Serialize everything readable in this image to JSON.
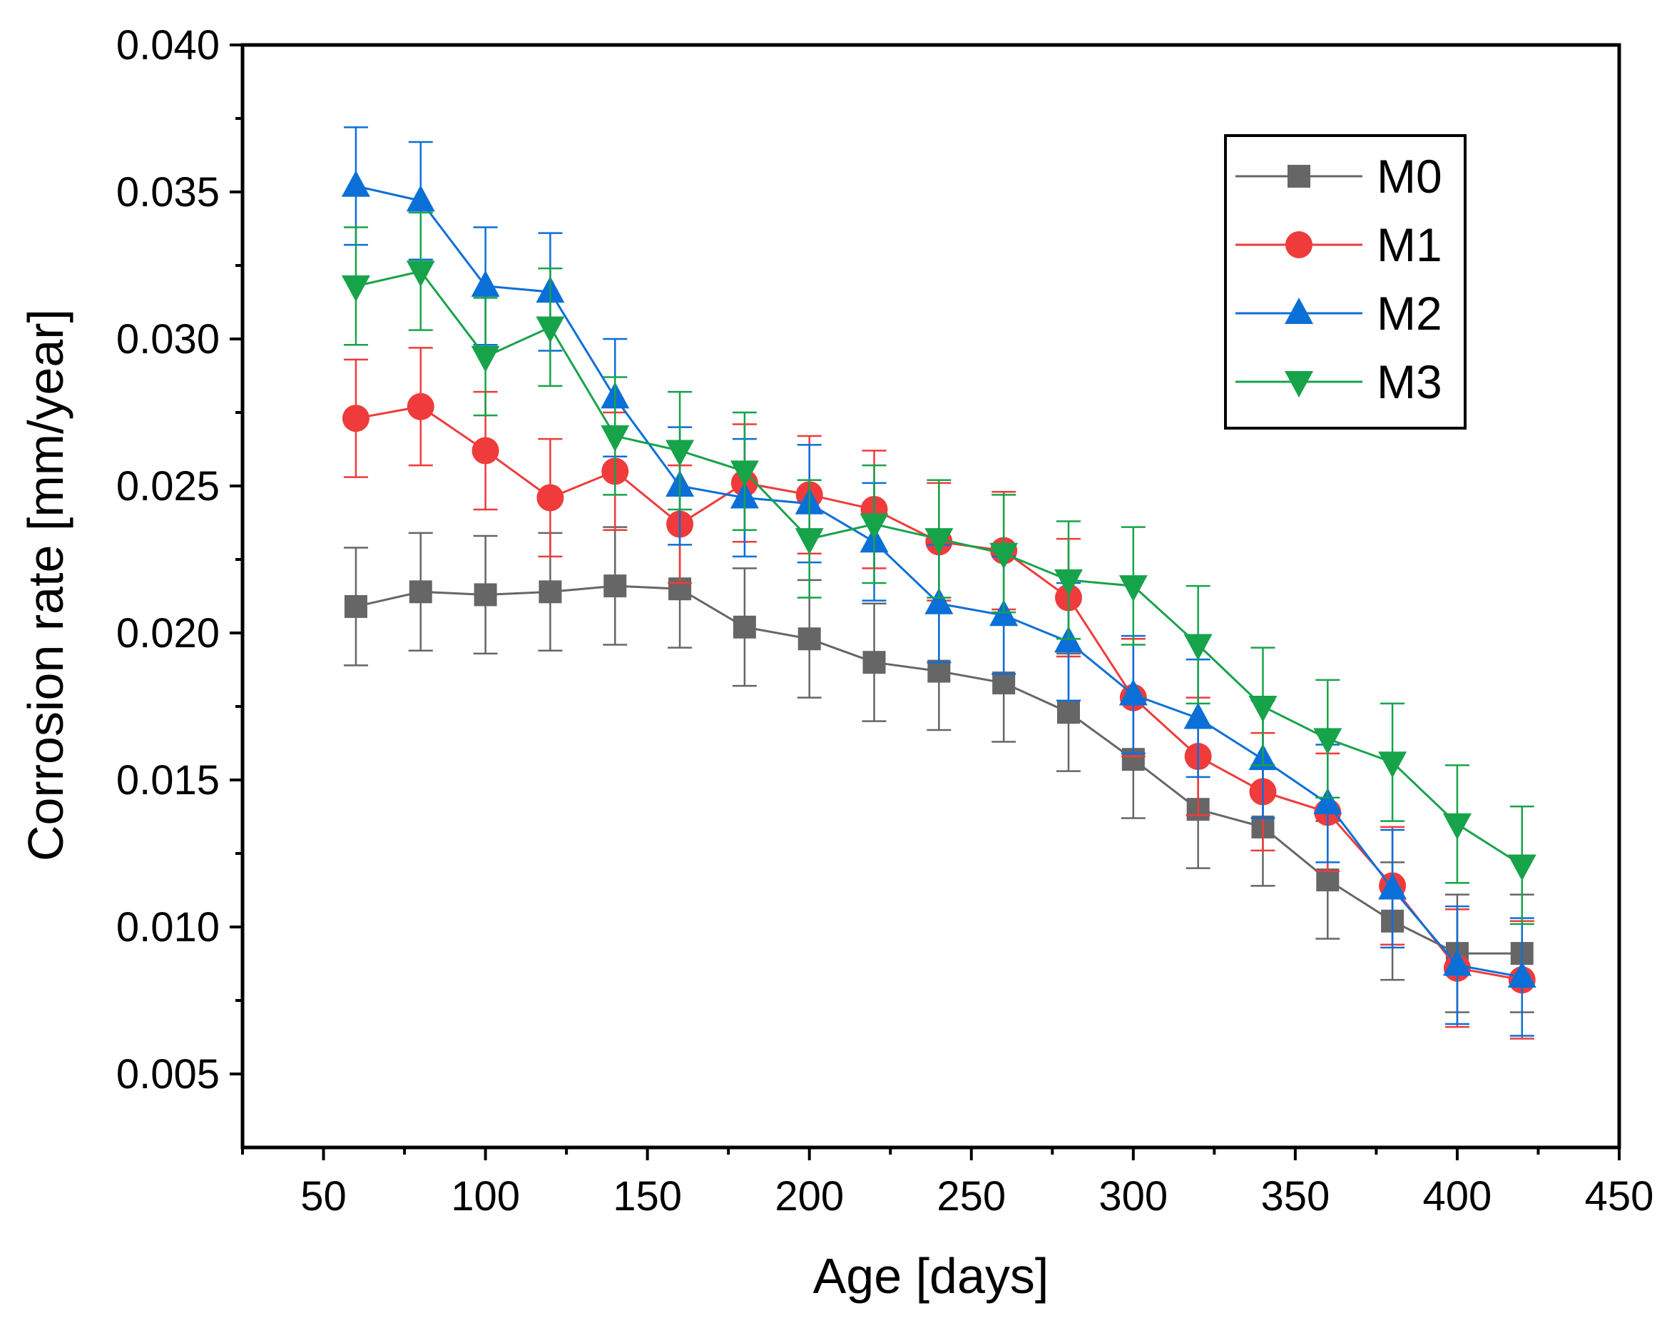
{
  "chart_data": {
    "type": "line",
    "title": "",
    "xlabel": "Age [days]",
    "ylabel": "Corrosion rate [mm/year]",
    "xlim": [
      25,
      450
    ],
    "ylim": [
      0.0025,
      0.04
    ],
    "x_ticks": [
      50,
      100,
      150,
      200,
      250,
      300,
      350,
      400,
      450
    ],
    "x_tick_labels": [
      "50",
      "100",
      "150",
      "200",
      "250",
      "300",
      "350",
      "400",
      "450"
    ],
    "y_ticks": [
      0.005,
      0.01,
      0.015,
      0.02,
      0.025,
      0.03,
      0.035,
      0.04
    ],
    "y_tick_labels": [
      "0.005",
      "0.010",
      "0.015",
      "0.020",
      "0.025",
      "0.030",
      "0.035",
      "0.040"
    ],
    "legend_position": "top-right",
    "error_bar": 0.002,
    "x": [
      60,
      80,
      100,
      120,
      140,
      160,
      180,
      200,
      220,
      240,
      260,
      280,
      300,
      320,
      340,
      360,
      380,
      400,
      420
    ],
    "series": [
      {
        "name": "M0",
        "color": "#666666",
        "marker": "square",
        "values": [
          0.0209,
          0.0214,
          0.0213,
          0.0214,
          0.0216,
          0.0215,
          0.0202,
          0.0198,
          0.019,
          0.0187,
          0.0183,
          0.0173,
          0.0157,
          0.014,
          0.0134,
          0.0116,
          0.0102,
          0.0091,
          0.0091
        ]
      },
      {
        "name": "M1",
        "color": "#ef3b3b",
        "marker": "circle",
        "values": [
          0.0273,
          0.0277,
          0.0262,
          0.0246,
          0.0255,
          0.0237,
          0.0251,
          0.0247,
          0.0242,
          0.0231,
          0.0228,
          0.0212,
          0.0178,
          0.0158,
          0.0146,
          0.0139,
          0.0114,
          0.0086,
          0.0082
        ]
      },
      {
        "name": "M2",
        "color": "#0b6fd8",
        "marker": "triangle-up",
        "values": [
          0.0352,
          0.0347,
          0.0318,
          0.0316,
          0.028,
          0.025,
          0.0246,
          0.0244,
          0.0231,
          0.021,
          0.0206,
          0.0197,
          0.0179,
          0.0171,
          0.0157,
          0.0142,
          0.0113,
          0.0087,
          0.0083
        ]
      },
      {
        "name": "M3",
        "color": "#17a34a",
        "marker": "triangle-down",
        "values": [
          0.0318,
          0.0323,
          0.0294,
          0.0304,
          0.0267,
          0.0262,
          0.0255,
          0.0232,
          0.0237,
          0.0232,
          0.0227,
          0.0218,
          0.0216,
          0.0196,
          0.0175,
          0.0164,
          0.0156,
          0.0135,
          0.0121
        ]
      }
    ]
  }
}
